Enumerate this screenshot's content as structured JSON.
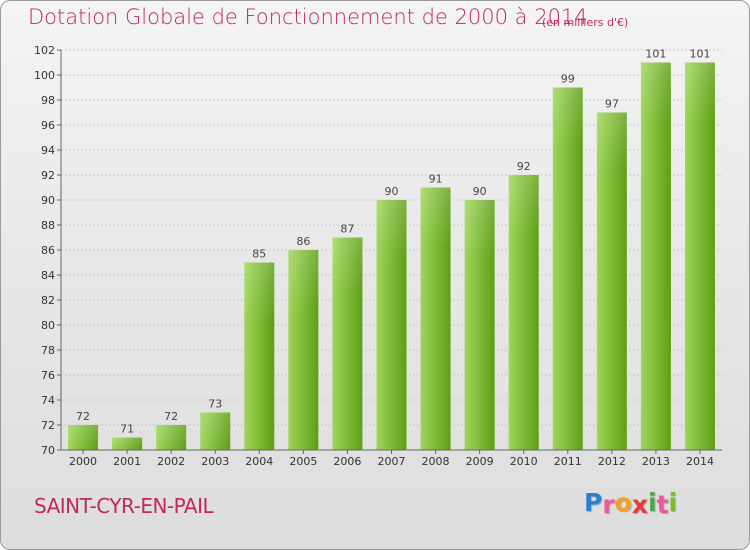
{
  "header": {
    "title": "Dotation Globale de Fonctionnement de 2000 à 2014",
    "subtitle": "(en milliers d'€)"
  },
  "footer": {
    "location": "SAINT-CYR-EN-PAIL",
    "brand": {
      "letters": [
        "P",
        "r",
        "o",
        "x",
        "i",
        "t",
        "i"
      ],
      "colors": [
        "#2a7fd4",
        "#e85a9a",
        "#f2a01e",
        "#e23c3c",
        "#4aa64a",
        "#e85a9a",
        "#7dba2f"
      ]
    }
  },
  "colors": {
    "bar_light": "#9fd65a",
    "bar_dark": "#5e9e14",
    "grid": "#c9c9c9"
  },
  "chart_data": {
    "type": "bar",
    "categories": [
      "2000",
      "2001",
      "2002",
      "2003",
      "2004",
      "2005",
      "2006",
      "2007",
      "2008",
      "2009",
      "2010",
      "2011",
      "2012",
      "2013",
      "2014"
    ],
    "values": [
      72,
      71,
      72,
      73,
      85,
      86,
      87,
      90,
      91,
      90,
      92,
      99,
      97,
      101,
      101
    ],
    "title": "Dotation Globale de Fonctionnement de 2000 à 2014",
    "subtitle": "(en milliers d'€)",
    "xlabel": "",
    "ylabel": "",
    "ylim": [
      70,
      102
    ],
    "yticks": [
      70,
      72,
      74,
      76,
      78,
      80,
      82,
      84,
      86,
      88,
      90,
      92,
      94,
      96,
      98,
      100,
      102
    ],
    "grid": true,
    "data_labels": true
  }
}
